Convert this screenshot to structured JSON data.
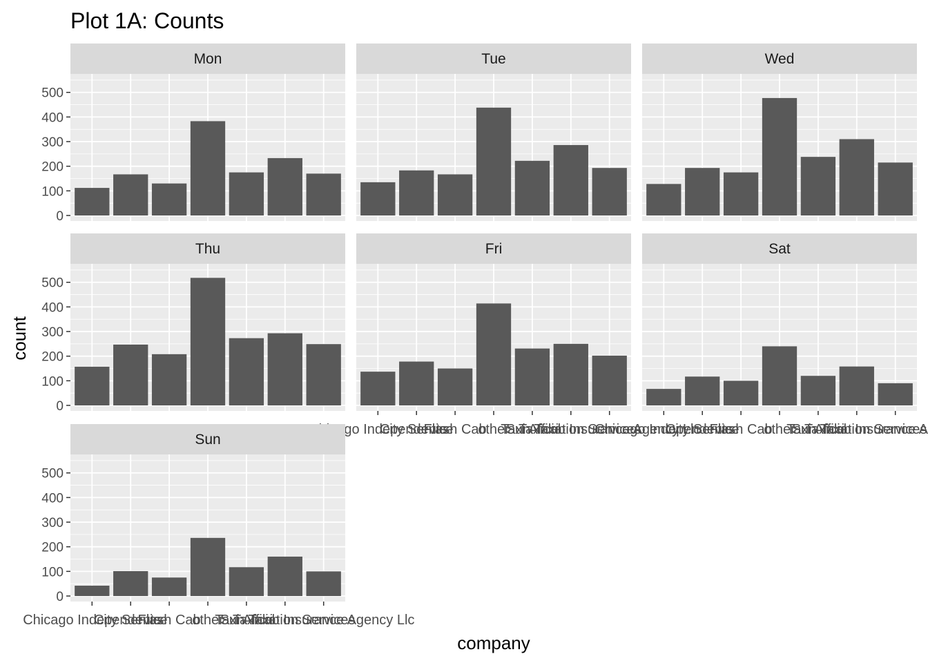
{
  "chart_data": {
    "type": "bar",
    "title": "Plot 1A: Counts",
    "xlabel": "company",
    "ylabel": "count",
    "ylim": [
      0,
      550
    ],
    "yticks": [
      0,
      100,
      200,
      300,
      400,
      500
    ],
    "grid": true,
    "categories": [
      "Chicago Independents",
      "City Service",
      "Flash Cab",
      "other",
      "Sun Taxi",
      "Taxi Affiliation Services",
      "Taxicab Insurance Agency Llc"
    ],
    "series": [
      {
        "facet": "Mon",
        "values": [
          112,
          167,
          130,
          383,
          175,
          233,
          170
        ]
      },
      {
        "facet": "Tue",
        "values": [
          135,
          183,
          167,
          438,
          222,
          286,
          193
        ]
      },
      {
        "facet": "Wed",
        "values": [
          128,
          193,
          175,
          477,
          238,
          310,
          215
        ]
      },
      {
        "facet": "Thu",
        "values": [
          157,
          247,
          208,
          518,
          273,
          293,
          249
        ]
      },
      {
        "facet": "Fri",
        "values": [
          137,
          178,
          150,
          414,
          231,
          250,
          202
        ]
      },
      {
        "facet": "Sat",
        "values": [
          67,
          117,
          100,
          240,
          120,
          158,
          90
        ]
      },
      {
        "facet": "Sun",
        "values": [
          42,
          101,
          75,
          236,
          117,
          160,
          100
        ]
      }
    ],
    "colors": {
      "bar": "#595959",
      "panel_bg": "#EBEBEB",
      "strip_bg": "#D9D9D9",
      "grid": "#FFFFFF",
      "tick": "#333333"
    }
  }
}
